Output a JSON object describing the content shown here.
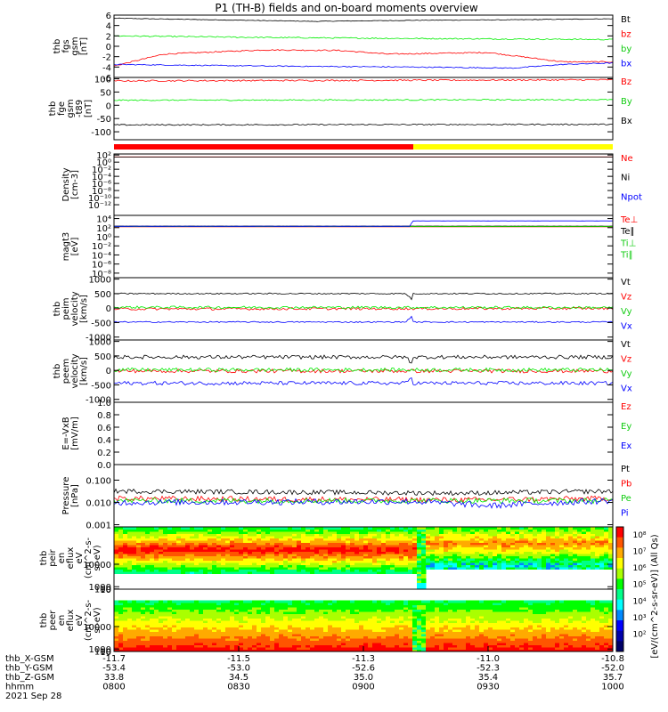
{
  "title": "P1  (TH-B) fields and on-board moments overview",
  "colors": {
    "black": "#000000",
    "red": "#ff0000",
    "green": "#00ee00",
    "blue": "#0000ff",
    "yellow": "#ffff00",
    "ltgreen": "#33dd33"
  },
  "chart_data": [
    {
      "type": "line",
      "ylabel": [
        "thb",
        "fgs",
        "gsm",
        "[nT]"
      ],
      "yticks": [
        {
          "v": 6,
          "l": "6"
        },
        {
          "v": 4,
          "l": "4"
        },
        {
          "v": 2,
          "l": "2"
        },
        {
          "v": 0,
          "l": "0"
        },
        {
          "v": -2,
          "l": "-2"
        },
        {
          "v": -4,
          "l": "-4"
        },
        {
          "v": -6,
          "l": "-6"
        }
      ],
      "ylim": [
        -6,
        6
      ],
      "series": [
        {
          "name": "Bt",
          "color": "#000000",
          "points": [
            [
              0,
              5.4
            ],
            [
              0.2,
              5.1
            ],
            [
              0.4,
              4.8
            ],
            [
              0.6,
              5.0
            ],
            [
              0.8,
              5.1
            ],
            [
              1,
              5.3
            ]
          ],
          "noise": 0.25
        },
        {
          "name": "bz",
          "color": "#ff0000",
          "points": [
            [
              0,
              -3.8
            ],
            [
              0.1,
              -1.5
            ],
            [
              0.3,
              -0.7
            ],
            [
              0.45,
              -0.8
            ],
            [
              0.55,
              -1.5
            ],
            [
              0.75,
              -1.2
            ],
            [
              0.9,
              -3.0
            ],
            [
              1,
              -3.0
            ]
          ],
          "noise": 0.5
        },
        {
          "name": "by",
          "color": "#00ee00",
          "points": [
            [
              0,
              2.0
            ],
            [
              0.3,
              1.7
            ],
            [
              0.6,
              1.5
            ],
            [
              1,
              1.3
            ]
          ],
          "noise": 0.5
        },
        {
          "name": "bx",
          "color": "#0000ff",
          "points": [
            [
              0,
              -3.5
            ],
            [
              0.3,
              -3.8
            ],
            [
              0.6,
              -4.0
            ],
            [
              0.8,
              -4.2
            ],
            [
              0.9,
              -3.5
            ],
            [
              1,
              -3.2
            ]
          ],
          "noise": 0.4
        }
      ]
    },
    {
      "type": "line",
      "ylabel": [
        "thb",
        "fge",
        "gsm",
        "-t89",
        "[nT]"
      ],
      "yticks": [
        {
          "v": 100,
          "l": "100"
        },
        {
          "v": 50,
          "l": "50"
        },
        {
          "v": 0,
          "l": "0"
        },
        {
          "v": -50,
          "l": "-50"
        },
        {
          "v": -100,
          "l": "-100"
        }
      ],
      "ylim": [
        -130,
        105
      ],
      "series": [
        {
          "name": "Bz",
          "color": "#ff0000",
          "points": [
            [
              0,
              92
            ],
            [
              1,
              96
            ]
          ],
          "noise": 0.6
        },
        {
          "name": "By",
          "color": "#00ee00",
          "points": [
            [
              0,
              19
            ],
            [
              1,
              21
            ]
          ],
          "noise": 0.5
        },
        {
          "name": "Bx",
          "color": "#000000",
          "points": [
            [
              0,
              -74
            ],
            [
              1,
              -72
            ]
          ],
          "noise": 0.5
        }
      ]
    },
    {
      "type": "line",
      "ylabel": [
        "Density",
        "[cm-3]"
      ],
      "log": true,
      "yticks": [
        {
          "v": 100,
          "l": "10²"
        },
        {
          "v": 1,
          "l": "10⁰"
        },
        {
          "v": 0.01,
          "l": "10⁻²"
        },
        {
          "v": 0.0001,
          "l": "10⁻⁴"
        },
        {
          "v": 1e-06,
          "l": "10⁻⁶"
        },
        {
          "v": 1e-08,
          "l": "10⁻⁸"
        },
        {
          "v": 1e-10,
          "l": "10⁻¹⁰"
        },
        {
          "v": 1e-12,
          "l": "10⁻¹²"
        }
      ],
      "ylim": [
        1e-15,
        200
      ],
      "series": [
        {
          "name": "Ne",
          "color": "#ff0000",
          "points": [
            [
              0,
              30
            ],
            [
              1,
              30
            ]
          ],
          "noise": 0.05
        },
        {
          "name": "Ni",
          "color": "#000000",
          "points": [
            [
              0,
              28
            ],
            [
              1,
              28
            ]
          ],
          "noise": 0.05
        },
        {
          "name": "Npot",
          "color": "#0000ff",
          "points": [],
          "noise": 0
        }
      ]
    },
    {
      "type": "line",
      "ylabel": [
        "magt3",
        "[eV]"
      ],
      "log": true,
      "yticks": [
        {
          "v": 10000,
          "l": "10⁴"
        },
        {
          "v": 100,
          "l": "10²"
        },
        {
          "v": 1,
          "l": "10⁰"
        },
        {
          "v": 0.01,
          "l": "10⁻²"
        },
        {
          "v": 0.0001,
          "l": "10⁻⁴"
        },
        {
          "v": 1e-06,
          "l": "10⁻⁶"
        },
        {
          "v": 1e-08,
          "l": "10⁻⁸"
        }
      ],
      "ylim": [
        1e-09,
        50000
      ],
      "series": [
        {
          "name": "Te⊥",
          "color": "#ff0000",
          "points": [
            [
              0,
              150
            ],
            [
              1,
              150
            ]
          ],
          "noise": 0.05
        },
        {
          "name": "Te∥",
          "color": "#000000",
          "points": [
            [
              0,
              220
            ],
            [
              1,
              220
            ]
          ],
          "noise": 0.05
        },
        {
          "name": "Ti⊥",
          "color": "#00ee00",
          "points": [
            [
              0,
              180
            ],
            [
              1,
              180
            ]
          ],
          "noise": 0.05
        },
        {
          "name": "Ti∥",
          "color": "#00ee00",
          "points": [],
          "noise": 0
        },
        {
          "name": "Npot(step)",
          "color": "#0000ff",
          "points": [
            [
              0,
              200
            ],
            [
              0.595,
              200
            ],
            [
              0.6,
              3000
            ],
            [
              1,
              3000
            ]
          ],
          "noise": 0.02
        }
      ]
    },
    {
      "type": "line",
      "ylabel": [
        "thb",
        "peim",
        "velocity",
        "[km/s]"
      ],
      "yticks": [
        {
          "v": 1000,
          "l": "1000"
        },
        {
          "v": 500,
          "l": "500"
        },
        {
          "v": 0,
          "l": "0"
        },
        {
          "v": -500,
          "l": "-500"
        },
        {
          "v": -1000,
          "l": "-1000"
        }
      ],
      "ylim": [
        -1100,
        1050
      ],
      "series": [
        {
          "name": "Vt",
          "color": "#000000",
          "points": [
            [
              0,
              500
            ],
            [
              1,
              500
            ]
          ],
          "noise": 0.5
        },
        {
          "name": "Vz",
          "color": "#ff0000",
          "points": [
            [
              0,
              -30
            ],
            [
              1,
              -10
            ]
          ],
          "noise": 1
        },
        {
          "name": "Vy",
          "color": "#00ee00",
          "points": [
            [
              0,
              30
            ],
            [
              1,
              20
            ]
          ],
          "noise": 1
        },
        {
          "name": "Vx",
          "color": "#0000ff",
          "points": [
            [
              0,
              -480
            ],
            [
              1,
              -480
            ]
          ],
          "noise": 0.5
        }
      ]
    },
    {
      "type": "line",
      "ylabel": [
        "thb",
        "peem",
        "velocity",
        "[km/s]"
      ],
      "yticks": [
        {
          "v": 1000,
          "l": "1000"
        },
        {
          "v": 500,
          "l": "500"
        },
        {
          "v": 0,
          "l": "0"
        },
        {
          "v": -500,
          "l": "-500"
        },
        {
          "v": -1000,
          "l": "-1000"
        }
      ],
      "ylim": [
        -1100,
        1050
      ],
      "series": [
        {
          "name": "Vt",
          "color": "#000000",
          "points": [
            [
              0,
              460
            ],
            [
              1,
              460
            ]
          ],
          "noise": 1.5
        },
        {
          "name": "Vz",
          "color": "#ff0000",
          "points": [
            [
              0,
              -20
            ],
            [
              1,
              -20
            ]
          ],
          "noise": 1.5
        },
        {
          "name": "Vy",
          "color": "#00ee00",
          "points": [
            [
              0,
              20
            ],
            [
              1,
              20
            ]
          ],
          "noise": 1.5
        },
        {
          "name": "Vx",
          "color": "#0000ff",
          "points": [
            [
              0,
              -440
            ],
            [
              1,
              -440
            ]
          ],
          "noise": 1.5
        }
      ]
    },
    {
      "type": "line",
      "ylabel": [
        "E=-VxB",
        "[mV/m]"
      ],
      "yticks": [
        {
          "v": 1.0,
          "l": "1.0"
        },
        {
          "v": 0.8,
          "l": "0.8"
        },
        {
          "v": 0.6,
          "l": "0.6"
        },
        {
          "v": 0.4,
          "l": "0.4"
        },
        {
          "v": 0.2,
          "l": "0.2"
        },
        {
          "v": 0.0,
          "l": "0.0"
        }
      ],
      "ylim": [
        0,
        1
      ],
      "series": [
        {
          "name": "Ez",
          "color": "#ff0000",
          "points": [],
          "noise": 0
        },
        {
          "name": "Ey",
          "color": "#00ee00",
          "points": [],
          "noise": 0
        },
        {
          "name": "Ex",
          "color": "#0000ff",
          "points": [],
          "noise": 0
        }
      ]
    },
    {
      "type": "line",
      "ylabel": [
        "Pressure",
        "[nPa]"
      ],
      "log": true,
      "yticks": [
        {
          "v": 0.1,
          "l": "0.100"
        },
        {
          "v": 0.01,
          "l": "0.010"
        },
        {
          "v": 0.001,
          "l": "0.001"
        }
      ],
      "ylim": [
        0.0008,
        0.5
      ],
      "series": [
        {
          "name": "Pt",
          "color": "#000000",
          "points": [
            [
              0,
              0.032
            ],
            [
              0.7,
              0.026
            ],
            [
              1,
              0.032
            ]
          ],
          "noise": 0.7
        },
        {
          "name": "Pb",
          "color": "#ff0000",
          "points": [
            [
              0,
              0.015
            ],
            [
              0.7,
              0.013
            ],
            [
              1,
              0.015
            ]
          ],
          "noise": 0.8
        },
        {
          "name": "Pe",
          "color": "#00ee00",
          "points": [
            [
              0,
              0.012
            ],
            [
              1,
              0.012
            ]
          ],
          "noise": 0.8
        },
        {
          "name": "Pi",
          "color": "#0000ff",
          "points": [
            [
              0,
              0.01
            ],
            [
              0.6,
              0.011
            ],
            [
              0.75,
              0.007
            ],
            [
              1,
              0.012
            ]
          ],
          "noise": 0.9
        }
      ]
    },
    {
      "type": "heatmap",
      "ylabel": [
        "thb",
        "peir",
        "en",
        "eflux",
        "eV",
        "(cm^2-s-",
        "sr-eV)"
      ],
      "yticks": [
        {
          "v": 10000,
          "l": "10000"
        },
        {
          "v": 1000,
          "l": "1000"
        },
        {
          "v": 100,
          "l": "100"
        },
        {
          "v": 10,
          "l": "10"
        }
      ],
      "ylim": [
        5,
        25000
      ]
    },
    {
      "type": "heatmap",
      "ylabel": [
        "thb",
        "peer",
        "en",
        "eflux",
        "eV",
        "(cm^2-s-",
        "sr-eV)"
      ],
      "yticks": [
        {
          "v": 10000,
          "l": "10000"
        },
        {
          "v": 1000,
          "l": "1000"
        },
        {
          "v": 100,
          "l": "100"
        },
        {
          "v": 10,
          "l": "10"
        }
      ],
      "ylim": [
        5,
        25000
      ]
    }
  ],
  "colorbar": {
    "label": "[eV/(cm^2-s-sr-eV)]  (All Qs)",
    "ticks": [
      "10⁸",
      "10⁷",
      "10⁶",
      "10⁵",
      "10⁴",
      "10³",
      "10²"
    ]
  },
  "bar_strip": {
    "left_color": "#ff0000",
    "right_color": "#ffff00",
    "switch_frac": 0.6
  },
  "x_axis": {
    "rows": [
      {
        "label": "thb_X-GSM",
        "values": [
          "-11.7",
          "-11.5",
          "-11.3",
          "-11.0",
          "-10.8"
        ]
      },
      {
        "label": "thb_Y-GSM",
        "values": [
          "-53.4",
          "-53.0",
          "-52.6",
          "-52.3",
          "-52.0"
        ]
      },
      {
        "label": "thb_Z-GSM",
        "values": [
          "33.8",
          "34.5",
          "35.0",
          "35.4",
          "35.7"
        ]
      },
      {
        "label": "hhmm",
        "values": [
          "0800",
          "0830",
          "0900",
          "0930",
          "1000"
        ]
      }
    ],
    "date": "2021 Sep 28",
    "tick_fracs": [
      0,
      0.25,
      0.5,
      0.75,
      1
    ]
  }
}
